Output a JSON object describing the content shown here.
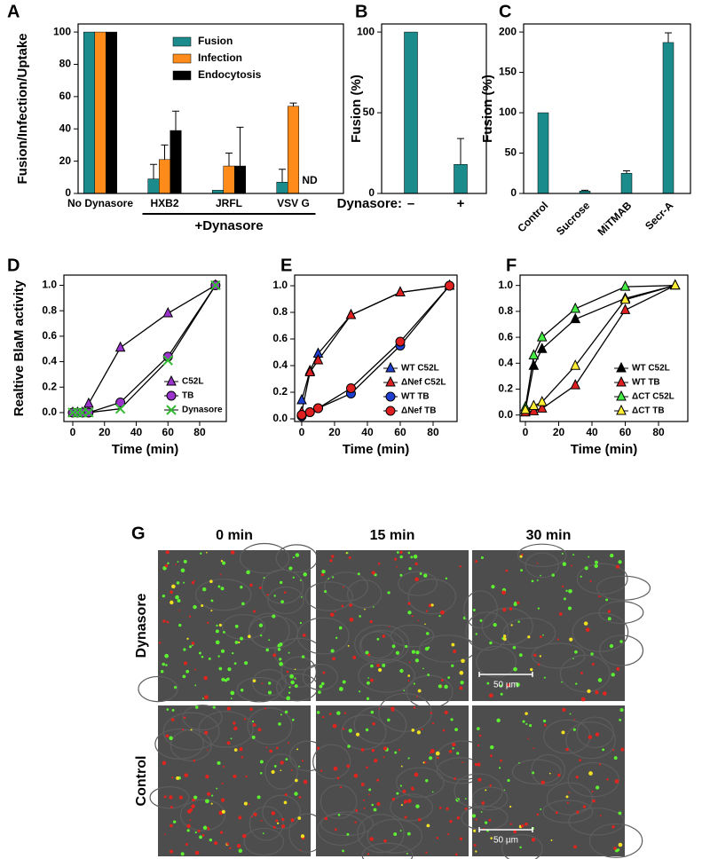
{
  "chart_data": [
    {
      "type": "bar",
      "label": "A",
      "ylabel": "Fusion/Infection/Uptake",
      "categories": [
        "No Dynasore",
        "HXB2",
        "JRFL",
        "VSV G"
      ],
      "series": [
        {
          "name": "Fusion",
          "color": "#1b8b8b",
          "values": [
            100,
            9,
            2,
            7
          ],
          "errors": [
            null,
            9,
            null,
            8
          ]
        },
        {
          "name": "Infection",
          "color": "#ff8c1a",
          "values": [
            100,
            21,
            17,
            54
          ],
          "errors": [
            null,
            9,
            8,
            2
          ]
        },
        {
          "name": "Endocytosis",
          "color": "#000000",
          "values": [
            100,
            39,
            17,
            null
          ],
          "errors": [
            null,
            12,
            24,
            null
          ]
        }
      ],
      "annotations": [
        "ND",
        "+Dynasore"
      ],
      "ylim": [
        0,
        105
      ],
      "yticks": [
        0,
        20,
        40,
        60,
        80,
        100
      ]
    },
    {
      "type": "bar",
      "label": "B",
      "ylabel": "Fusion (%)",
      "xlabel": "Dynasore:",
      "categories": [
        "–",
        "+"
      ],
      "color": "#1b8b8b",
      "values": [
        100,
        18
      ],
      "errors": [
        null,
        16
      ],
      "ylim": [
        0,
        105
      ],
      "yticks": [
        0,
        50,
        100
      ]
    },
    {
      "type": "bar",
      "label": "C",
      "ylabel": "Fusion (%)",
      "categories": [
        "Control",
        "Sucrose",
        "MiTMAB",
        "Secr-A"
      ],
      "color": "#1b8b8b",
      "values": [
        100,
        3,
        25,
        187
      ],
      "errors": [
        null,
        1,
        3,
        12
      ],
      "ylim": [
        0,
        210
      ],
      "yticks": [
        0,
        50,
        100,
        150,
        200
      ]
    },
    {
      "type": "line",
      "label": "D",
      "ylabel": "Realtive BlaM activity",
      "xlabel": "Time (min)",
      "x": [
        0,
        3,
        6,
        10,
        30,
        60,
        90
      ],
      "series": [
        {
          "name": "C52L",
          "color": "#9933cc",
          "marker": "triangle",
          "values": [
            0,
            0,
            0,
            0.07,
            0.51,
            0.78,
            1.0
          ]
        },
        {
          "name": "TB",
          "color": "#9933cc",
          "marker": "circle",
          "values": [
            0,
            0,
            0,
            0,
            0.08,
            0.44,
            1.0
          ]
        },
        {
          "name": "Dynasore",
          "color": "#33bb33",
          "marker": "x",
          "values": [
            0,
            0,
            0,
            0,
            0.03,
            0.41,
            1.0
          ]
        }
      ],
      "xlim": [
        -5.6,
        96.8
      ],
      "xticks": [
        0,
        20,
        40,
        60,
        80
      ],
      "ylim": [
        -0.07,
        1.08
      ],
      "yticks": [
        {
          "value": 0,
          "label": "0.0"
        },
        0.2,
        0.4,
        0.6,
        0.8,
        {
          "value": 1,
          "label": "1.0"
        }
      ]
    },
    {
      "type": "line",
      "label": "E",
      "xlabel": "Time (min)",
      "x": [
        0,
        5,
        10,
        30,
        60,
        90
      ],
      "series": [
        {
          "name": "WT C52L",
          "color": "#1f3fd0",
          "marker": "triangle",
          "values": [
            0.14,
            0.36,
            0.49,
            0.78,
            0.95,
            1.0
          ]
        },
        {
          "name": "ΔNef C52L",
          "color": "#e02020",
          "marker": "triangle",
          "values": [
            0.05,
            0.35,
            0.44,
            0.78,
            0.95,
            1.0
          ]
        },
        {
          "name": "WT TB",
          "color": "#1f3fd0",
          "marker": "circle",
          "values": [
            0.02,
            0.05,
            0.08,
            0.19,
            0.55,
            1.0
          ]
        },
        {
          "name": "ΔNef TB",
          "color": "#e02020",
          "marker": "circle",
          "values": [
            0.03,
            0.05,
            0.08,
            0.23,
            0.58,
            1.0
          ]
        }
      ],
      "xlim": [
        -4.3,
        94.6
      ],
      "xticks": [
        0,
        20,
        40,
        60,
        80
      ],
      "ylim": [
        -0.02,
        1.08
      ],
      "yticks": [
        {
          "value": 0,
          "label": "0.0"
        },
        0.2,
        0.4,
        0.6,
        0.8,
        {
          "value": 1,
          "label": "1.0"
        }
      ]
    },
    {
      "type": "line",
      "label": "F",
      "xlabel": "Time (min)",
      "x": [
        0,
        5,
        10,
        30,
        60,
        90
      ],
      "series": [
        {
          "name": "WT C52L",
          "color": "#000000",
          "marker": "triangle",
          "values": [
            0.04,
            0.38,
            0.51,
            0.74,
            0.9,
            1.0
          ]
        },
        {
          "name": "WT TB",
          "color": "#e02020",
          "marker": "triangle",
          "values": [
            0.02,
            0.03,
            0.05,
            0.23,
            0.81,
            1.0
          ]
        },
        {
          "name": "ΔCT C52L",
          "color": "#44ee44",
          "marker": "triangle",
          "values": [
            0.06,
            0.46,
            0.6,
            0.82,
            0.99,
            1.0
          ]
        },
        {
          "name": "ΔCT TB",
          "color": "#ffee33",
          "marker": "triangle",
          "values": [
            0.04,
            0.07,
            0.1,
            0.38,
            0.89,
            1.0
          ]
        }
      ],
      "xlim": [
        -3.2,
        97.6
      ],
      "xticks": [
        0,
        20,
        40,
        60,
        80
      ],
      "ylim": [
        -0.05,
        1.08
      ],
      "yticks": [
        {
          "value": 0,
          "label": "0.0"
        },
        0.2,
        0.4,
        0.6,
        0.8,
        {
          "value": 1,
          "label": "1.0"
        }
      ]
    }
  ],
  "images": {
    "label": "G",
    "columns": [
      "0 min",
      "15 min",
      "30 min"
    ],
    "rows": [
      "Dynasore",
      "Control"
    ],
    "scale_bar": "50 µm"
  }
}
